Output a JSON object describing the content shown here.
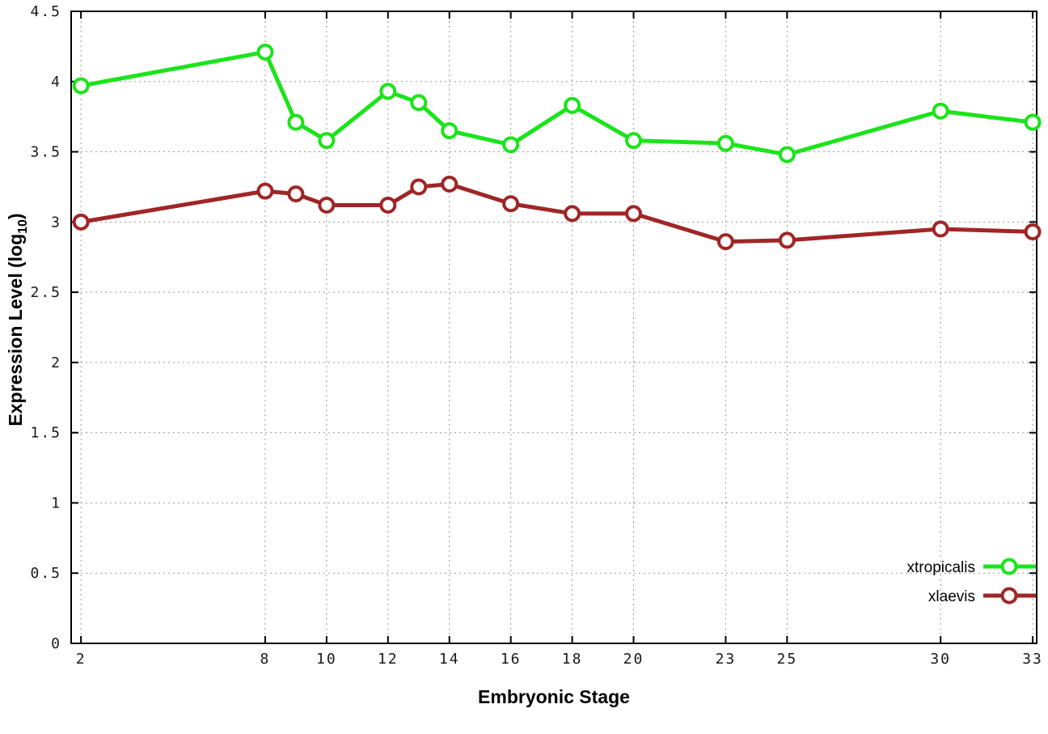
{
  "chart_data": {
    "type": "line",
    "title": "",
    "xlabel": "Embryonic Stage",
    "ylabel_prefix": "Expression Level (log",
    "ylabel_sub": "10",
    "ylabel_suffix": ")",
    "xlim": [
      1.68,
      33.13
    ],
    "ylim": [
      0,
      4.5
    ],
    "xticks": [
      2,
      8,
      10,
      12,
      14,
      16,
      18,
      20,
      23,
      25,
      30,
      33
    ],
    "xtick_labels": [
      "2",
      "8",
      "10",
      "12",
      "14",
      "16",
      "18",
      "20",
      "23",
      "25",
      "30",
      "33"
    ],
    "yticks": [
      0,
      0.5,
      1,
      1.5,
      2,
      2.5,
      3,
      3.5,
      4,
      4.5
    ],
    "ytick_labels": [
      "0",
      "0.5",
      "1",
      "1.5",
      "2",
      "2.5",
      "3",
      "3.5",
      "4",
      "4.5"
    ],
    "x": [
      2,
      8,
      9,
      10,
      12,
      13,
      14,
      16,
      18,
      20,
      23,
      25,
      30,
      33
    ],
    "series": [
      {
        "name": "xtropicalis",
        "color": "#1be41b",
        "values": [
          3.97,
          4.21,
          3.71,
          3.58,
          3.93,
          3.85,
          3.65,
          3.55,
          3.83,
          3.58,
          3.56,
          3.48,
          3.79,
          3.71
        ]
      },
      {
        "name": "xlaevis",
        "color": "#a02626",
        "values": [
          3.0,
          3.22,
          3.2,
          3.12,
          3.12,
          3.25,
          3.27,
          3.13,
          3.06,
          3.06,
          2.86,
          2.87,
          2.95,
          2.93
        ]
      }
    ],
    "grid": true,
    "legend_position": "bottom-right",
    "background": "#ffffff",
    "grid_color": "#999999",
    "axis_color": "#000000",
    "marker": "open-circle"
  }
}
